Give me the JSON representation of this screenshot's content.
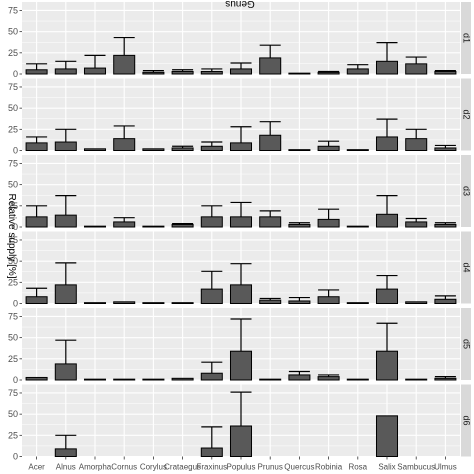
{
  "chart_data": {
    "type": "bar",
    "xlabel": "Genus",
    "ylabel": "Relative supply [%]",
    "ylim": [
      0,
      85
    ],
    "yticks": [
      "0",
      "25",
      "50",
      "75"
    ],
    "grid": true,
    "categories": [
      "Acer",
      "Alnus",
      "Amorpha",
      "Cornus",
      "Corylus",
      "Crataegus",
      "Fraxinus",
      "Populus",
      "Prunus",
      "Quercus",
      "Robinia",
      "Rosa",
      "Salix",
      "Sambucus",
      "Ulmus"
    ],
    "panels": [
      {
        "name": "d1",
        "values": [
          5,
          6,
          7,
          22,
          2,
          3,
          3,
          6,
          19,
          1,
          2,
          6,
          15,
          12,
          3
        ],
        "upper": [
          12,
          15,
          22,
          43,
          4,
          5,
          6,
          13,
          34,
          1,
          3,
          11,
          37,
          20,
          4
        ]
      },
      {
        "name": "d2",
        "values": [
          9,
          10,
          2,
          14,
          2,
          3,
          5,
          9,
          18,
          1,
          5,
          1,
          16,
          14,
          3
        ],
        "upper": [
          16,
          25,
          2,
          29,
          2,
          5,
          10,
          28,
          34,
          1,
          11,
          1,
          37,
          25,
          6
        ]
      },
      {
        "name": "d3",
        "values": [
          12,
          14,
          1,
          6,
          1,
          3,
          12,
          12,
          12,
          3,
          9,
          1,
          15,
          6,
          3
        ],
        "upper": [
          25,
          37,
          1,
          11,
          1,
          4,
          25,
          29,
          19,
          5,
          21,
          1,
          37,
          10,
          5
        ]
      },
      {
        "name": "d4",
        "values": [
          8,
          22,
          1,
          2,
          1,
          1,
          17,
          22,
          4,
          3,
          8,
          1,
          17,
          2,
          5
        ],
        "upper": [
          18,
          48,
          1,
          2,
          1,
          1,
          38,
          47,
          6,
          7,
          16,
          1,
          33,
          2,
          9
        ]
      },
      {
        "name": "d5",
        "values": [
          3,
          19,
          1,
          1,
          1,
          2,
          8,
          34,
          1,
          6,
          4,
          1,
          34,
          1,
          2
        ],
        "upper": [
          3,
          47,
          1,
          1,
          1,
          2,
          21,
          72,
          1,
          10,
          6,
          1,
          67,
          1,
          4
        ]
      },
      {
        "name": "d6",
        "values": [
          0,
          9,
          0,
          0,
          0,
          0,
          10,
          36,
          0,
          0,
          0,
          0,
          48,
          0,
          0
        ],
        "upper": [
          0,
          25,
          0,
          0,
          0,
          0,
          35,
          76,
          0,
          0,
          0,
          0,
          48,
          0,
          0
        ]
      }
    ],
    "colors": {
      "bar": "#595959",
      "panel_bg": "#ebebeb",
      "grid": "#ffffff",
      "strip": "#d9d9d9"
    }
  }
}
